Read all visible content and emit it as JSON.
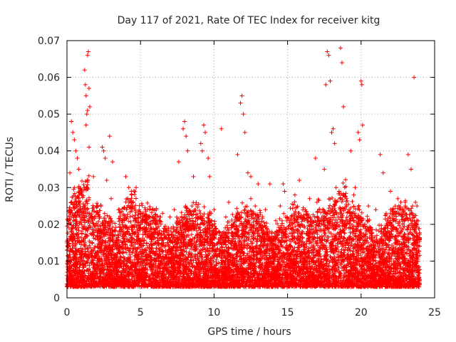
{
  "chart_data": {
    "type": "scatter",
    "title": "Day 117 of 2021, Rate Of TEC Index for receiver kitg",
    "xlabel": "GPS time / hours",
    "ylabel": "ROTI / TECUs",
    "xlim": [
      0,
      25
    ],
    "ylim": [
      0,
      0.07
    ],
    "x_ticks": [
      "0",
      "5",
      "10",
      "15",
      "20",
      "25"
    ],
    "y_ticks": [
      "0",
      "0.01",
      "0.02",
      "0.03",
      "0.04",
      "0.05",
      "0.06",
      "0.07"
    ],
    "x_tick_values": [
      0,
      5,
      10,
      15,
      20,
      25
    ],
    "y_tick_values": [
      0,
      0.01,
      0.02,
      0.03,
      0.04,
      0.05,
      0.06,
      0.07
    ],
    "grid": true,
    "marker": "plus",
    "color": "#ff0000",
    "series": [
      {
        "name": "ROTI",
        "x": [
          0.3,
          0.4,
          0.5,
          0.6,
          0.7,
          0.8,
          1.2,
          1.25,
          1.3,
          1.35,
          1.4,
          1.45,
          1.5,
          1.55,
          1.3,
          1.4,
          1.5,
          2.4,
          2.5,
          2.6,
          2.9,
          3.1,
          4.0,
          4.2,
          4.4,
          7.6,
          7.9,
          8.0,
          8.1,
          8.2,
          8.6,
          9.1,
          9.2,
          9.3,
          9.4,
          9.6,
          9.7,
          10.5,
          11.6,
          11.8,
          11.9,
          12.0,
          12.1,
          12.3,
          12.5,
          13.0,
          13.8,
          14.7,
          14.8,
          15.8,
          16.9,
          17.5,
          17.6,
          17.7,
          17.8,
          17.9,
          18.0,
          18.1,
          18.2,
          18.6,
          18.7,
          18.8,
          19.3,
          19.6,
          19.8,
          19.9,
          20.0,
          20.05,
          20.1,
          21.3,
          21.5,
          22.0,
          22.5,
          23.0,
          23.2,
          23.4,
          23.6,
          23.8,
          0.5,
          1.0,
          2.0,
          3.0,
          3.5,
          4.5,
          5.0,
          6.0,
          6.5,
          7.0,
          8.5,
          10.0,
          11.0,
          12.5,
          13.5,
          14.5,
          15.5,
          16.5,
          17.0,
          18.5,
          19.0,
          20.5,
          21.0,
          22.0,
          23.0,
          23.5,
          0.2,
          1.8,
          2.7,
          4.7,
          6.3,
          7.3,
          9.8,
          10.8,
          12.8,
          14.2,
          16.2,
          18.3,
          19.5,
          21.7,
          22.7,
          23.7
        ],
        "y": [
          0.048,
          0.045,
          0.043,
          0.04,
          0.038,
          0.035,
          0.062,
          0.058,
          0.055,
          0.05,
          0.066,
          0.067,
          0.057,
          0.052,
          0.047,
          0.051,
          0.041,
          0.041,
          0.04,
          0.038,
          0.044,
          0.037,
          0.033,
          0.03,
          0.028,
          0.037,
          0.046,
          0.048,
          0.044,
          0.04,
          0.033,
          0.042,
          0.04,
          0.047,
          0.045,
          0.038,
          0.033,
          0.046,
          0.039,
          0.053,
          0.055,
          0.05,
          0.045,
          0.034,
          0.033,
          0.031,
          0.031,
          0.031,
          0.029,
          0.032,
          0.038,
          0.035,
          0.058,
          0.067,
          0.066,
          0.059,
          0.045,
          0.046,
          0.042,
          0.068,
          0.064,
          0.052,
          0.04,
          0.03,
          0.045,
          0.043,
          0.059,
          0.058,
          0.047,
          0.039,
          0.034,
          0.029,
          0.027,
          0.025,
          0.039,
          0.035,
          0.06,
          0.025,
          0.03,
          0.028,
          0.025,
          0.027,
          0.024,
          0.026,
          0.022,
          0.021,
          0.023,
          0.022,
          0.025,
          0.024,
          0.026,
          0.027,
          0.024,
          0.025,
          0.028,
          0.027,
          0.026,
          0.029,
          0.027,
          0.025,
          0.024,
          0.023,
          0.026,
          0.025,
          0.034,
          0.033,
          0.032,
          0.03,
          0.022,
          0.024,
          0.023,
          0.022,
          0.025,
          0.021,
          0.024,
          0.03,
          0.028,
          0.023,
          0.024,
          0.026
        ]
      }
    ]
  }
}
